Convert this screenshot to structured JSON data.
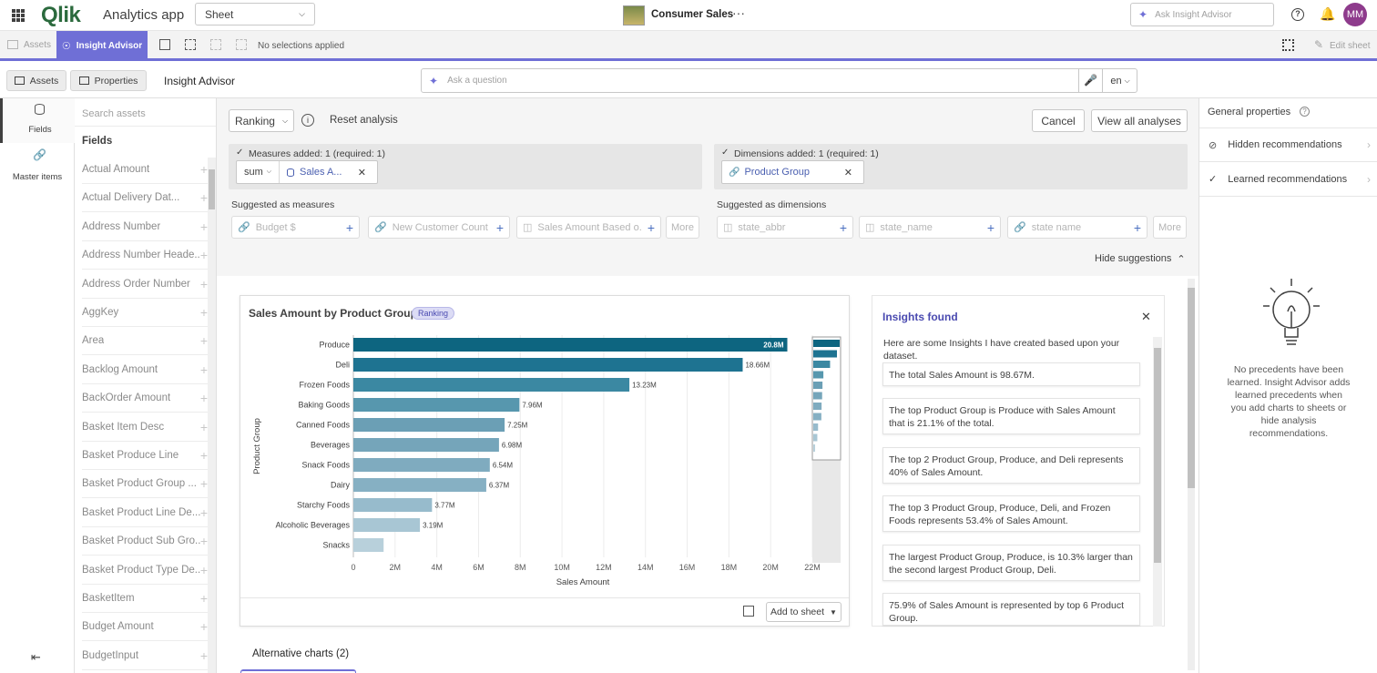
{
  "app": {
    "brand": "Qlik",
    "name": "Analytics app",
    "sheet_select": "Sheet",
    "doc_title": "Consumer Sales",
    "ask_insight_placeholder": "Ask Insight Advisor",
    "avatar": "MM"
  },
  "toolbar": {
    "assets": "Assets",
    "insight_advisor": "Insight Advisor",
    "no_selections": "No selections applied",
    "edit_sheet": "Edit sheet"
  },
  "subbar": {
    "assets_tab": "Assets",
    "properties_tab": "Properties",
    "title": "Insight Advisor",
    "ask_placeholder": "Ask a question",
    "language": "en"
  },
  "leftnav": {
    "fields": "Fields",
    "master_items": "Master items"
  },
  "assets_panel": {
    "search_placeholder": "Search assets",
    "heading": "Fields",
    "items": [
      "Actual Amount",
      "Actual Delivery Dat...",
      "Address Number",
      "Address Number Heade...",
      "Address Order Number",
      "AggKey",
      "Area",
      "Backlog Amount",
      "BackOrder Amount",
      "Basket Item Desc",
      "Basket Produce Line",
      "Basket Product Group ...",
      "Basket Product Line De...",
      "Basket Product Sub Gro...",
      "Basket Product Type De...",
      "BasketItem",
      "Budget Amount",
      "BudgetInput"
    ]
  },
  "analysis": {
    "type": "Ranking",
    "reset": "Reset analysis",
    "cancel": "Cancel",
    "view_all": "View all analyses",
    "measures_header": "Measures added: 1 (required: 1)",
    "agg": "sum",
    "measure": "Sales A...",
    "dimensions_header": "Dimensions added: 1 (required: 1)",
    "dimension": "Product Group",
    "suggested_measures_label": "Suggested as measures",
    "suggested_measures": [
      "Budget $",
      "New Customer Count",
      "Sales Amount Based o..."
    ],
    "suggested_dimensions_label": "Suggested as dimensions",
    "suggested_dimensions": [
      "state_abbr",
      "state_name",
      "state name"
    ],
    "more": "More",
    "hide_suggestions": "Hide suggestions"
  },
  "chart_card": {
    "title": "Sales Amount by Product Group",
    "badge": "Ranking",
    "add_to_sheet": "Add to sheet",
    "alternative_charts": "Alternative charts (2)"
  },
  "chart_data": {
    "type": "bar",
    "orientation": "horizontal",
    "title": "Sales Amount by Product Group",
    "categories": [
      "Produce",
      "Deli",
      "Frozen Foods",
      "Baking Goods",
      "Canned Foods",
      "Beverages",
      "Snack Foods",
      "Dairy",
      "Starchy Foods",
      "Alcoholic Beverages",
      "Snacks"
    ],
    "values": [
      20.8,
      18.66,
      13.23,
      7.96,
      7.25,
      6.98,
      6.54,
      6.37,
      3.77,
      3.19,
      1.45
    ],
    "labels": [
      "20.8M",
      "18.66M",
      "13.23M",
      "7.96M",
      "7.25M",
      "6.98M",
      "6.54M",
      "6.37M",
      "3.77M",
      "3.19M",
      ""
    ],
    "xticks": [
      "0",
      "2M",
      "4M",
      "6M",
      "8M",
      "10M",
      "12M",
      "14M",
      "16M",
      "18M",
      "20M",
      "22M"
    ],
    "xlabel": "Sales Amount",
    "ylabel": "Product Group",
    "xlim": [
      0,
      22
    ],
    "grid": true,
    "colors": [
      "#0d6580",
      "#1e7391",
      "#3b88a2",
      "#5797ae",
      "#6b9fb5",
      "#75a5ba",
      "#7fabbf",
      "#86b0c3",
      "#97bbcc",
      "#a8c6d4",
      "#b8d0db"
    ]
  },
  "insights": {
    "title": "Insights found",
    "intro": "Here are some Insights I have created based upon your dataset.",
    "items": [
      "The total Sales Amount is 98.67M.",
      "The top Product Group is Produce with Sales Amount that is 21.1% of the total.",
      "The top 2 Product Group, Produce, and Deli represents 40% of Sales Amount.",
      "The top 3 Product Group, Produce, Deli, and Frozen Foods represents 53.4% of Sales Amount.",
      "The largest Product Group, Produce, is 10.3% larger than the second largest Product Group, Deli.",
      "75.9% of Sales Amount is represented by top 6 Product Group."
    ]
  },
  "right_panel": {
    "title": "General properties",
    "hidden": "Hidden recommendations",
    "learned": "Learned recommendations",
    "empty_text": "No precedents have been learned. Insight Advisor adds learned precedents when you add charts to sheets or hide analysis recommendations."
  }
}
